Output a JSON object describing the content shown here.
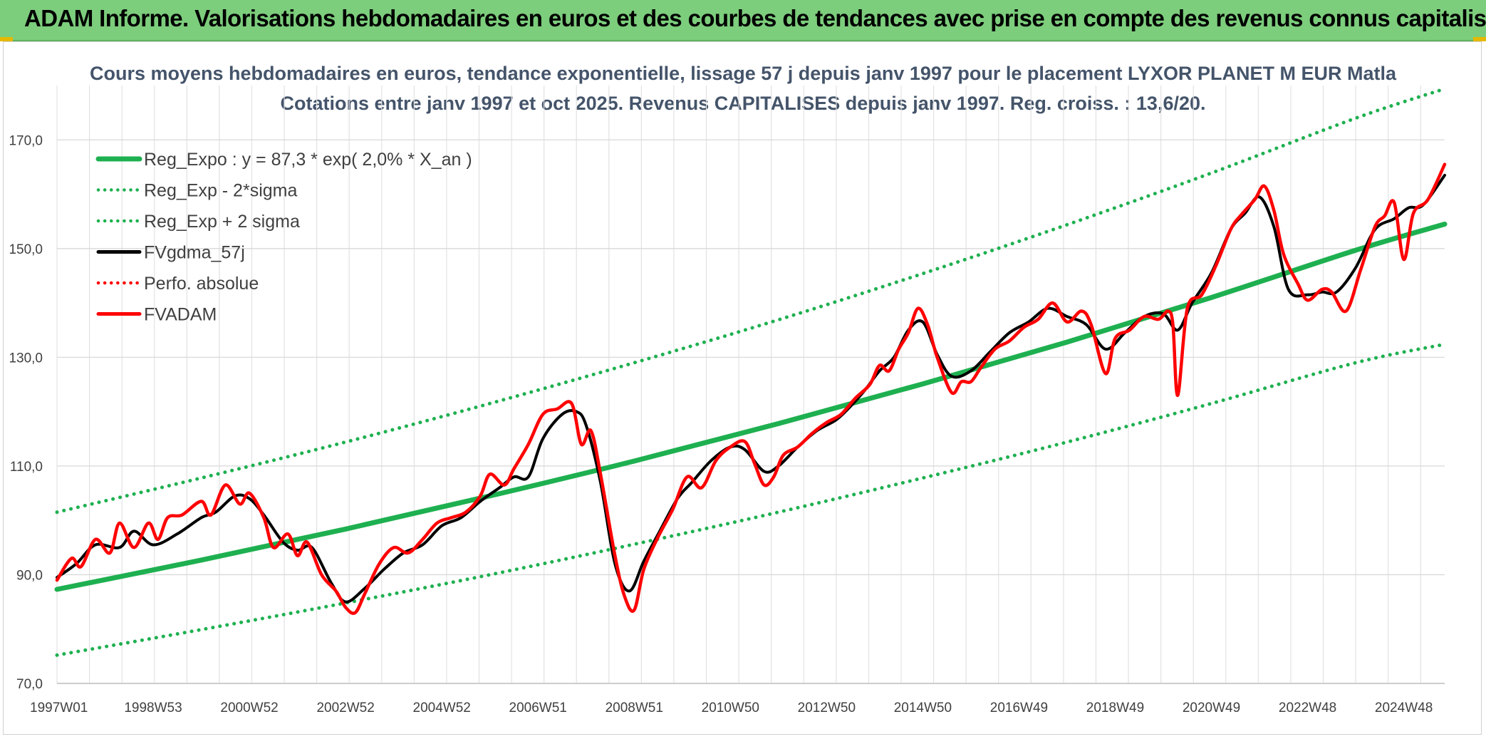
{
  "header": {
    "title": "ADAM Informe. Valorisations hebdomadaires en euros et des courbes de tendances avec prise en compte des revenus connus capitalisés"
  },
  "colors": {
    "banner": "#7ccd7c",
    "reg_expo": "#1eb050",
    "fvgdma": "#000000",
    "fvadam": "#ff0000",
    "title_text": "#44546a"
  },
  "chart_data": {
    "type": "line",
    "title": "Cours moyens hebdomadaires en euros, tendance exponentielle, lissage 57 j depuis janv 1997 pour le placement LYXOR PLANET M EUR Matla",
    "subtitle": "Cotations entre janv 1997 et oct 2025. Revenus CAPITALISES depuis janv 1997. Reg. croiss. : 13,6/20.",
    "xlabel": "",
    "ylabel": "",
    "ylim": [
      70,
      180
    ],
    "xlim": [
      1997.0,
      2025.85
    ],
    "y_ticks": [
      "70,0",
      "90,0",
      "110,0",
      "130,0",
      "150,0",
      "170,0"
    ],
    "y_tick_values": [
      70,
      90,
      110,
      130,
      150,
      170
    ],
    "x_tick_labels": [
      "1997W01",
      "1998W53",
      "2000W52",
      "2002W52",
      "2004W52",
      "2006W51",
      "2008W51",
      "2010W50",
      "2012W50",
      "2014W50",
      "2016W49",
      "2018W49",
      "2020W49",
      "2022W48",
      "2024W48"
    ],
    "x_tick_values": [
      1997.0,
      1999.0,
      2001.0,
      2003.0,
      2005.0,
      2007.0,
      2009.0,
      2011.0,
      2013.0,
      2015.0,
      2017.0,
      2019.0,
      2021.0,
      2023.0,
      2025.0
    ],
    "grid": true,
    "legend_position": "top-left",
    "legend": [
      {
        "label": "Reg_Expo : y = 87,3 * exp( 2,0% *  X_an )",
        "color": "#1eb050",
        "style": "solid-thick"
      },
      {
        "label": "Reg_Exp - 2*sigma",
        "color": "#1eb050",
        "style": "dotted"
      },
      {
        "label": "Reg_Exp + 2 sigma",
        "color": "#1eb050",
        "style": "dotted"
      },
      {
        "label": "FVgdma_57j",
        "color": "#000000",
        "style": "solid"
      },
      {
        "label": "Perfo. absolue",
        "color": "#ff0000",
        "style": "dotted"
      },
      {
        "label": "FVADAM",
        "color": "#ff0000",
        "style": "solid"
      }
    ],
    "series": [
      {
        "name": "Reg_Expo : y = 87,3 * exp( 2,0% *  X_an )",
        "x": [
          1997.0,
          2000.0,
          2003.0,
          2006.0,
          2009.0,
          2012.0,
          2015.0,
          2018.0,
          2021.0,
          2024.0,
          2025.85
        ],
        "values": [
          87.3,
          92.7,
          98.4,
          104.5,
          110.9,
          117.8,
          125.1,
          132.8,
          141.0,
          149.7,
          154.5
        ]
      },
      {
        "name": "Reg_Exp - 2*sigma",
        "x": [
          1997.0,
          2000.0,
          2003.0,
          2006.0,
          2009.0,
          2012.0,
          2015.0,
          2018.0,
          2021.0,
          2024.0,
          2025.85
        ],
        "values": [
          75.2,
          79.9,
          84.8,
          90.0,
          95.6,
          101.5,
          107.8,
          114.4,
          121.5,
          129.0,
          132.4
        ]
      },
      {
        "name": "Reg_Exp + 2 sigma",
        "x": [
          1997.0,
          2000.0,
          2003.0,
          2006.0,
          2009.0,
          2012.0,
          2015.0,
          2018.0,
          2021.0,
          2024.0,
          2025.85
        ],
        "values": [
          101.5,
          107.8,
          114.4,
          121.5,
          129.0,
          136.9,
          145.4,
          154.4,
          163.9,
          174.0,
          179.4
        ]
      },
      {
        "name": "FVgdma_57j",
        "x": [
          1997.0,
          1997.4,
          1997.8,
          1998.3,
          1998.6,
          1999.0,
          1999.5,
          2000.0,
          2000.3,
          2000.7,
          2001.0,
          2001.3,
          2001.7,
          2002.0,
          2002.3,
          2002.7,
          2003.0,
          2003.4,
          2003.8,
          2004.2,
          2004.6,
          2005.0,
          2005.4,
          2005.8,
          2006.2,
          2006.5,
          2006.8,
          2007.1,
          2007.5,
          2007.8,
          2008.0,
          2008.3,
          2008.6,
          2008.9,
          2009.2,
          2009.5,
          2009.9,
          2010.2,
          2010.6,
          2011.0,
          2011.3,
          2011.7,
          2012.0,
          2012.4,
          2012.8,
          2013.2,
          2013.5,
          2013.8,
          2014.1,
          2014.4,
          2014.7,
          2015.0,
          2015.3,
          2015.6,
          2016.0,
          2016.4,
          2016.8,
          2017.2,
          2017.6,
          2018.0,
          2018.4,
          2018.8,
          2019.2,
          2019.6,
          2020.0,
          2020.3,
          2020.6,
          2021.0,
          2021.4,
          2021.7,
          2022.0,
          2022.3,
          2022.6,
          2023.0,
          2023.3,
          2023.6,
          2024.0,
          2024.4,
          2024.8,
          2025.1,
          2025.4,
          2025.85
        ],
        "values": [
          89.5,
          92.0,
          95.5,
          95.0,
          98.0,
          95.5,
          97.5,
          100.5,
          101.5,
          104.5,
          104.0,
          101.0,
          96.0,
          94.5,
          95.0,
          88.5,
          85.0,
          87.5,
          91.0,
          94.0,
          95.5,
          99.0,
          100.5,
          103.5,
          106.0,
          108.0,
          108.0,
          115.0,
          119.5,
          120.0,
          117.5,
          107.0,
          92.0,
          87.0,
          92.5,
          97.5,
          104.0,
          107.0,
          111.0,
          113.5,
          113.0,
          109.0,
          110.0,
          113.5,
          116.5,
          118.5,
          121.0,
          124.0,
          127.5,
          130.0,
          135.0,
          136.5,
          130.5,
          126.5,
          127.5,
          131.0,
          134.5,
          136.5,
          139.0,
          137.5,
          136.0,
          131.5,
          134.5,
          137.5,
          138.0,
          135.0,
          140.0,
          145.5,
          153.5,
          156.5,
          159.5,
          154.0,
          142.5,
          141.5,
          142.0,
          142.0,
          146.5,
          153.5,
          155.5,
          157.5,
          158.0,
          163.5
        ]
      },
      {
        "name": "FVADAM",
        "x": [
          1997.0,
          1997.3,
          1997.5,
          1997.8,
          1998.1,
          1998.3,
          1998.6,
          1998.9,
          1999.1,
          1999.3,
          1999.6,
          2000.0,
          2000.2,
          2000.5,
          2000.8,
          2001.0,
          2001.3,
          2001.5,
          2001.8,
          2002.0,
          2002.2,
          2002.5,
          2002.8,
          2003.0,
          2003.2,
          2003.4,
          2003.7,
          2004.0,
          2004.3,
          2004.6,
          2004.9,
          2005.2,
          2005.5,
          2005.8,
          2006.0,
          2006.3,
          2006.5,
          2006.8,
          2007.1,
          2007.4,
          2007.7,
          2007.9,
          2008.1,
          2008.3,
          2008.6,
          2008.8,
          2009.0,
          2009.2,
          2009.5,
          2009.8,
          2010.1,
          2010.4,
          2010.7,
          2011.0,
          2011.3,
          2011.5,
          2011.7,
          2011.9,
          2012.1,
          2012.4,
          2012.7,
          2013.0,
          2013.3,
          2013.6,
          2013.9,
          2014.1,
          2014.3,
          2014.5,
          2014.7,
          2014.9,
          2015.1,
          2015.3,
          2015.6,
          2015.8,
          2016.0,
          2016.2,
          2016.5,
          2016.8,
          2017.1,
          2017.4,
          2017.7,
          2018.0,
          2018.3,
          2018.5,
          2018.8,
          2019.0,
          2019.3,
          2019.6,
          2019.9,
          2020.1,
          2020.2,
          2020.3,
          2020.5,
          2020.8,
          2021.1,
          2021.4,
          2021.6,
          2021.9,
          2022.1,
          2022.3,
          2022.5,
          2022.8,
          2023.0,
          2023.3,
          2023.5,
          2023.8,
          2024.1,
          2024.4,
          2024.6,
          2024.8,
          2025.0,
          2025.2,
          2025.5,
          2025.85
        ],
        "values": [
          89.0,
          93.0,
          91.5,
          96.5,
          94.0,
          99.5,
          95.0,
          99.5,
          96.5,
          100.5,
          101.0,
          103.5,
          101.0,
          106.5,
          103.0,
          105.0,
          100.5,
          95.0,
          97.5,
          93.5,
          96.0,
          90.0,
          87.0,
          84.0,
          83.0,
          86.5,
          92.0,
          95.0,
          94.0,
          96.5,
          99.5,
          100.5,
          101.5,
          104.5,
          108.5,
          106.5,
          109.5,
          114.0,
          119.5,
          120.5,
          121.5,
          114.0,
          116.5,
          108.5,
          93.5,
          86.0,
          83.5,
          91.0,
          97.0,
          102.0,
          108.0,
          106.0,
          111.0,
          113.5,
          114.5,
          110.5,
          106.5,
          108.0,
          112.0,
          113.5,
          116.0,
          118.0,
          119.5,
          122.5,
          125.0,
          128.5,
          127.5,
          131.5,
          134.5,
          139.0,
          136.0,
          130.0,
          123.5,
          125.5,
          125.5,
          128.0,
          131.5,
          133.0,
          135.5,
          137.0,
          140.0,
          136.5,
          138.5,
          136.0,
          127.0,
          133.5,
          135.0,
          137.5,
          137.0,
          138.5,
          136.0,
          123.0,
          139.0,
          141.5,
          147.0,
          153.5,
          156.0,
          159.0,
          161.5,
          157.0,
          149.0,
          143.5,
          140.5,
          142.5,
          142.0,
          138.5,
          146.0,
          154.0,
          156.0,
          158.5,
          148.0,
          156.5,
          159.0,
          165.5
        ]
      }
    ]
  }
}
